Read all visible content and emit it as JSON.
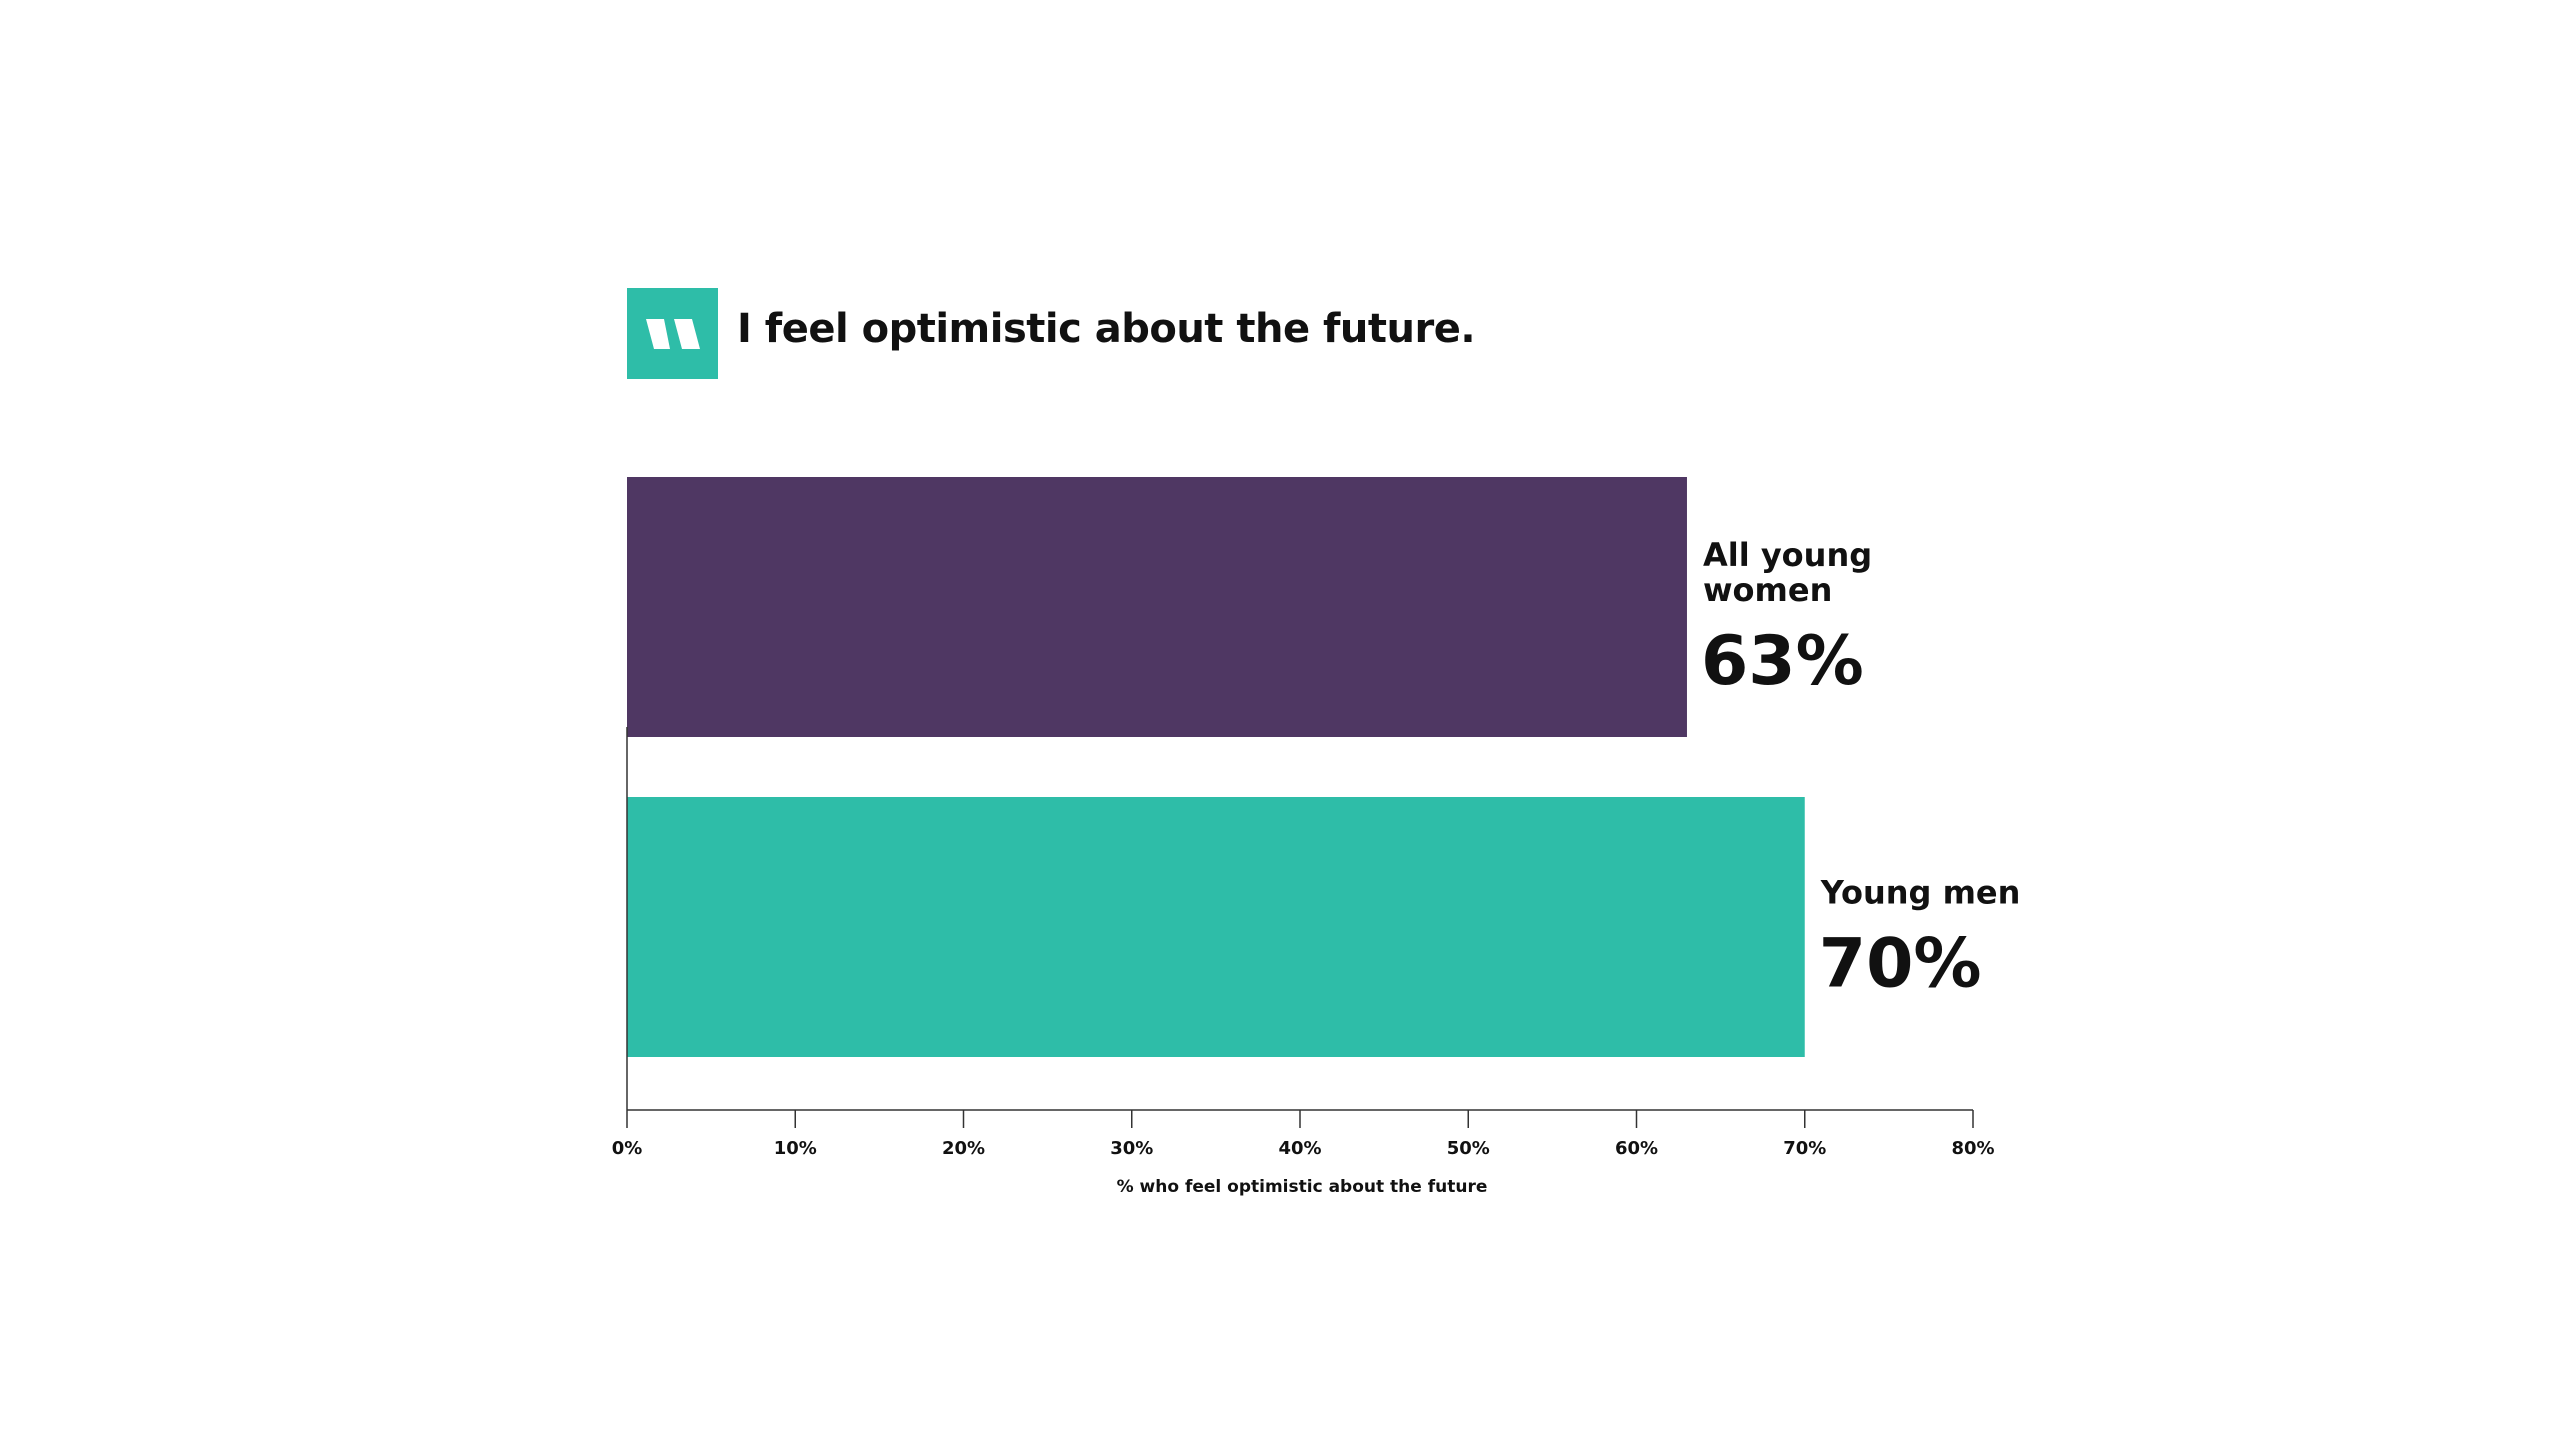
{
  "chart_data": {
    "type": "bar",
    "orientation": "horizontal",
    "title": "I feel optimistic about the future.",
    "xlabel": "% who feel optimistic about the future",
    "ylabel": "",
    "xlim": [
      0,
      80
    ],
    "ticks": [
      "0%",
      "10%",
      "20%",
      "30%",
      "40%",
      "50%",
      "60%",
      "70%",
      "80%"
    ],
    "tick_values": [
      0,
      10,
      20,
      30,
      40,
      50,
      60,
      70,
      80
    ],
    "grid": false,
    "categories": [
      {
        "label_lines": [
          "All young",
          "women"
        ],
        "value": 63,
        "value_label": "63%",
        "color": "#4f3763"
      },
      {
        "label_lines": [
          "Young men"
        ],
        "value": 70,
        "value_label": "70%",
        "color": "#2ebda8"
      }
    ]
  },
  "logo": {
    "color": "#2ebda8",
    "icon": "quote-mark-icon"
  }
}
